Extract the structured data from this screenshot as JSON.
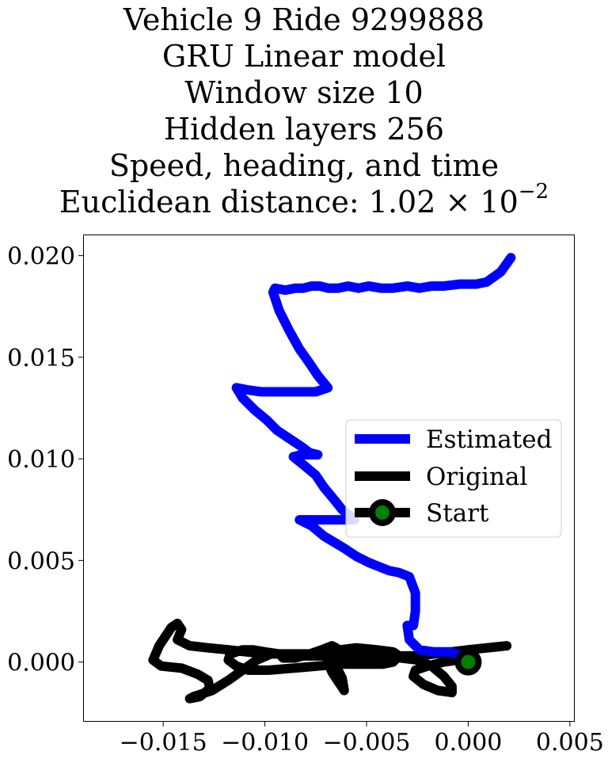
{
  "chart_data": {
    "type": "line",
    "title_lines": [
      "Vehicle 9 Ride 9299888",
      "GRU Linear model",
      "Window size 10",
      "Hidden layers 256",
      "Speed, heading, and time"
    ],
    "distance_label": "Euclidean distance: ",
    "distance_mantissa": "1.02",
    "distance_times": " × 10",
    "distance_exponent": "−2",
    "xlabel": "",
    "ylabel": "",
    "xlim": [
      -0.0189,
      0.0052
    ],
    "ylim": [
      -0.0029,
      0.021
    ],
    "xticks": [
      -0.015,
      -0.01,
      -0.005,
      0.0,
      0.005
    ],
    "xtick_labels": [
      "−0.015",
      "−0.010",
      "−0.005",
      "0.000",
      "0.005"
    ],
    "yticks": [
      0.0,
      0.005,
      0.01,
      0.015,
      0.02
    ],
    "ytick_labels": [
      "0.000",
      "0.005",
      "0.010",
      "0.015",
      "0.020"
    ],
    "grid": false,
    "legend_position": "center-right",
    "series": [
      {
        "name": "Estimated",
        "color": "#0000ff",
        "x": [
          0.0021,
          0.0016,
          0.0009,
          0.0004,
          -0.0004,
          -0.0012,
          -0.0018,
          -0.0024,
          -0.003,
          -0.0037,
          -0.0043,
          -0.0049,
          -0.0054,
          -0.0059,
          -0.0064,
          -0.0069,
          -0.0073,
          -0.0077,
          -0.0081,
          -0.0085,
          -0.009,
          -0.0095,
          -0.0096,
          -0.0093,
          -0.0088,
          -0.0083,
          -0.0078,
          -0.0074,
          -0.0069,
          -0.0075,
          -0.0084,
          -0.0093,
          -0.0102,
          -0.0109,
          -0.0114,
          -0.0111,
          -0.0105,
          -0.0099,
          -0.0094,
          -0.0088,
          -0.0082,
          -0.0078,
          -0.0074,
          -0.0082,
          -0.0086,
          -0.0081,
          -0.0075,
          -0.0071,
          -0.0066,
          -0.0062,
          -0.0058,
          -0.0056,
          -0.0063,
          -0.0071,
          -0.0083,
          -0.0077,
          -0.0071,
          -0.0066,
          -0.0061,
          -0.0055,
          -0.0049,
          -0.0044,
          -0.0039,
          -0.0034,
          -0.0029,
          -0.0026,
          -0.0026,
          -0.0027,
          -0.003,
          -0.0029,
          -0.0024,
          -0.0017,
          -0.0009,
          -0.0003,
          0.0
        ],
        "y": [
          0.0199,
          0.0192,
          0.0187,
          0.0186,
          0.0186,
          0.0185,
          0.0185,
          0.0184,
          0.0185,
          0.0184,
          0.0184,
          0.0185,
          0.0184,
          0.0185,
          0.0184,
          0.0184,
          0.0185,
          0.0185,
          0.0184,
          0.0184,
          0.0183,
          0.0184,
          0.0182,
          0.0173,
          0.0163,
          0.0154,
          0.0147,
          0.0141,
          0.0135,
          0.0133,
          0.0133,
          0.0133,
          0.0133,
          0.0134,
          0.0135,
          0.013,
          0.0124,
          0.0119,
          0.0114,
          0.011,
          0.0106,
          0.0103,
          0.0102,
          0.0102,
          0.0101,
          0.0097,
          0.0092,
          0.0086,
          0.008,
          0.0075,
          0.0072,
          0.007,
          0.007,
          0.007,
          0.007,
          0.0067,
          0.0062,
          0.0059,
          0.0056,
          0.0052,
          0.0049,
          0.0047,
          0.0045,
          0.0044,
          0.0042,
          0.0034,
          0.0025,
          0.0018,
          0.0018,
          0.0011,
          0.0006,
          0.0005,
          0.0005,
          0.0003,
          0.0
        ]
      },
      {
        "name": "Original",
        "color": "#000000",
        "x": [
          0.0019,
          0.0,
          -0.0025,
          -0.005,
          -0.0075,
          -0.01,
          -0.0118,
          -0.0128,
          -0.0137,
          -0.0143,
          -0.0141,
          -0.0143,
          -0.0146,
          -0.0152,
          -0.0155,
          -0.0151,
          -0.0141,
          -0.0133,
          -0.0128,
          -0.0127,
          -0.0132,
          -0.0137,
          -0.0135,
          -0.0126,
          -0.0118,
          -0.0111,
          -0.0104,
          -0.0097,
          -0.0093,
          -0.0091,
          -0.0085,
          -0.0078,
          -0.0072,
          -0.0067,
          -0.0065,
          -0.0068,
          -0.0067,
          -0.0064,
          -0.0062,
          -0.0061,
          -0.0063,
          -0.0067,
          -0.0069,
          -0.007,
          -0.0063,
          -0.0055,
          -0.0045,
          -0.0037,
          -0.0034,
          -0.0037,
          -0.0042,
          -0.0052,
          -0.0062,
          -0.0074,
          -0.0086,
          -0.0098,
          -0.0108,
          -0.0114,
          -0.0118,
          -0.0117,
          -0.0111,
          -0.0106,
          -0.01,
          -0.0093,
          -0.0082,
          -0.007,
          -0.0055,
          -0.0043,
          -0.0033,
          -0.0025,
          -0.0018,
          -0.0012,
          -0.0008,
          -0.0008,
          -0.0015,
          -0.0022,
          -0.0027,
          -0.0026,
          -0.002,
          -0.0012,
          -0.0005,
          0.0
        ],
        "y": [
          0.0008,
          0.0006,
          0.0003,
          0.0003,
          0.0004,
          0.0004,
          0.0006,
          0.0007,
          0.0008,
          0.0011,
          0.0016,
          0.0019,
          0.0017,
          0.0008,
          0.0001,
          -0.0002,
          -0.0003,
          -0.0006,
          -0.0009,
          -0.0013,
          -0.0017,
          -0.0018,
          -0.0017,
          -0.0014,
          -0.0009,
          -0.0004,
          0.0001,
          0.0004,
          0.0004,
          0.0002,
          0.0002,
          0.0004,
          0.0006,
          0.0008,
          0.0007,
          0.0003,
          0.0,
          -0.0004,
          -0.0008,
          -0.0014,
          -0.0011,
          -0.0005,
          0.0,
          0.0003,
          0.0006,
          0.0007,
          0.0006,
          0.0005,
          0.0003,
          0.0,
          -0.0001,
          -0.0001,
          -0.0001,
          -0.0002,
          -0.0003,
          -0.0004,
          -0.0004,
          -0.0002,
          0.0001,
          0.0004,
          0.0006,
          0.0006,
          0.0005,
          0.0004,
          0.0003,
          0.0003,
          0.0003,
          0.0003,
          0.0002,
          0.0001,
          -0.0002,
          -0.0007,
          -0.0012,
          -0.0015,
          -0.0014,
          -0.0011,
          -0.0007,
          -0.0004,
          -0.0002,
          0.0,
          0.0001,
          0.0
        ]
      },
      {
        "name": "Start",
        "color": "#000000",
        "marker_face": "#008000",
        "x": [
          0.0
        ],
        "y": [
          0.0
        ]
      }
    ]
  }
}
